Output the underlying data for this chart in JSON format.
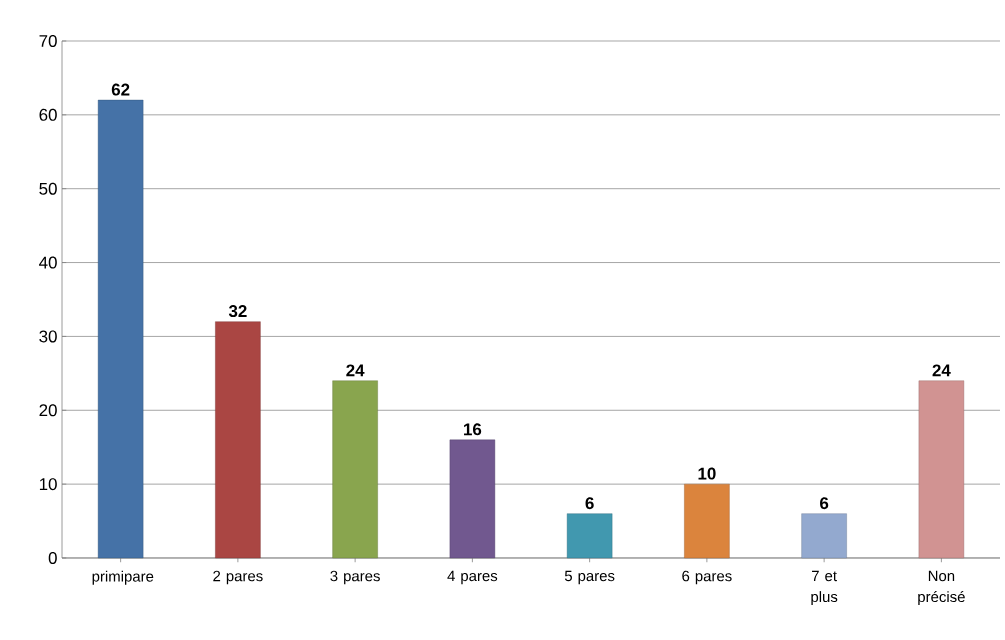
{
  "chart_data": {
    "type": "bar",
    "categories": [
      "primipare",
      "2 pares",
      "3 pares",
      "4 pares",
      "5 pares",
      "6 pares",
      "7 et plus",
      "Non précisé"
    ],
    "values": [
      62,
      32,
      24,
      16,
      6,
      10,
      6,
      24
    ],
    "colors": [
      "#4572a7",
      "#aa4643",
      "#89a54e",
      "#71588f",
      "#4198af",
      "#db843d",
      "#93a9cf",
      "#d19392"
    ],
    "ylim": [
      0,
      70
    ],
    "yticks": [
      0,
      10,
      20,
      30,
      40,
      50,
      60,
      70
    ],
    "grid": "y",
    "data_labels": true
  }
}
